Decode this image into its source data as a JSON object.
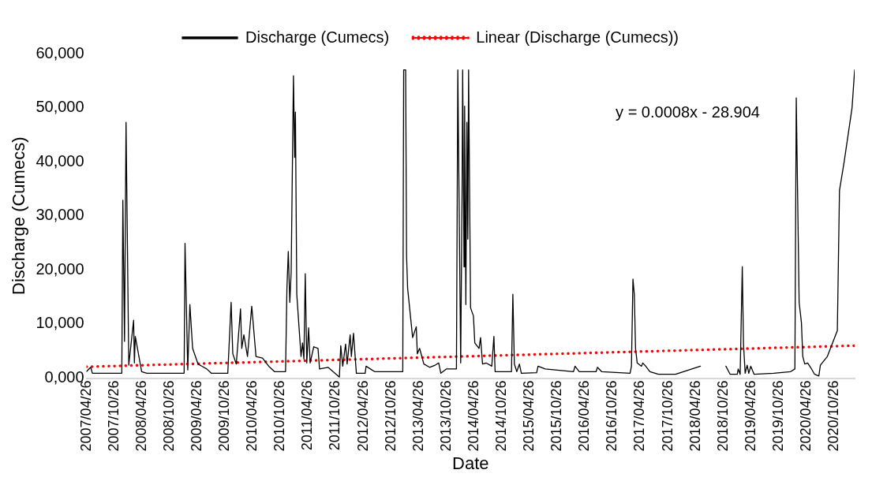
{
  "chart_data": {
    "type": "line",
    "xlabel": "Date",
    "ylabel": "Discharge (Cumecs)",
    "legend": "top",
    "grid": false,
    "marker": "none",
    "xlim": [
      "2007-04-26",
      "2021-03-09"
    ],
    "xticks": [
      {
        "value": "2007-04-26",
        "label": "2007/04/26"
      },
      {
        "value": "2007-10-26",
        "label": "2007/10/26"
      },
      {
        "value": "2008-04-26",
        "label": "2008/04/26"
      },
      {
        "value": "2008-10-26",
        "label": "2008/10/26"
      },
      {
        "value": "2009-04-26",
        "label": "2009/04/26"
      },
      {
        "value": "2009-10-26",
        "label": "2009/10/26"
      },
      {
        "value": "2010-04-26",
        "label": "2010/04/26"
      },
      {
        "value": "2010-10-26",
        "label": "2010/10/26"
      },
      {
        "value": "2011-04-26",
        "label": "2011/04/26"
      },
      {
        "value": "2011-10-26",
        "label": "2011/10/26"
      },
      {
        "value": "2012-04-26",
        "label": "2012/04/26"
      },
      {
        "value": "2012-10-26",
        "label": "2012/10/26"
      },
      {
        "value": "2013-04-26",
        "label": "2013/04/26"
      },
      {
        "value": "2013-10-26",
        "label": "2013/10/26"
      },
      {
        "value": "2014-04-26",
        "label": "2014/04/26"
      },
      {
        "value": "2014-10-26",
        "label": "2014/10/26"
      },
      {
        "value": "2015-04-26",
        "label": "2015/04/26"
      },
      {
        "value": "2015-10-26",
        "label": "2015/10/26"
      },
      {
        "value": "2016-04-26",
        "label": "2016/04/26"
      },
      {
        "value": "2016-10-26",
        "label": "2016/10/26"
      },
      {
        "value": "2017-04-26",
        "label": "2017/04/26"
      },
      {
        "value": "2017-10-26",
        "label": "2017/10/26"
      },
      {
        "value": "2018-04-26",
        "label": "2018/04/26"
      },
      {
        "value": "2018-10-26",
        "label": "2018/10/26"
      },
      {
        "value": "2019-04-26",
        "label": "2019/04/26"
      },
      {
        "value": "2019-10-26",
        "label": "2019/10/26"
      },
      {
        "value": "2020-04-26",
        "label": "2020/04/26"
      },
      {
        "value": "2020-10-26",
        "label": "2020/10/26"
      }
    ],
    "ylim": [
      0,
      60000
    ],
    "yticks": [
      {
        "value": 0,
        "label": "0,000"
      },
      {
        "value": 10000,
        "label": "10,000"
      },
      {
        "value": 20000,
        "label": "20,000"
      },
      {
        "value": 30000,
        "label": "30,000"
      },
      {
        "value": 40000,
        "label": "40,000"
      },
      {
        "value": 50000,
        "label": "50,000"
      },
      {
        "value": 60000,
        "label": "60,000"
      }
    ],
    "annotations": [
      "y = 0.0008x - 28.904"
    ],
    "series": [
      {
        "name": "Discharge (Cumecs)",
        "color": "#000000",
        "line_style": "solid",
        "x": [
          "2007-04-26",
          "2007-05-24",
          "2007-06-04",
          "2007-12-15",
          "2007-12-22",
          "2008-01-02",
          "2008-01-12",
          "2008-01-30",
          "2008-03-02",
          "2008-03-07",
          "2008-03-13",
          "2008-04-24",
          "2008-05-28",
          "2009-01-29",
          "2009-02-04",
          "2009-02-22",
          "2009-03-08",
          "2009-03-26",
          "2009-05-01",
          "2009-06-27",
          "2009-07-27",
          "2009-11-13",
          "2009-12-05",
          "2009-12-16",
          "2010-01-08",
          "2010-02-05",
          "2010-02-13",
          "2010-02-27",
          "2010-03-23",
          "2010-04-20",
          "2010-05-18",
          "2010-06-30",
          "2010-08-10",
          "2010-09-17",
          "2010-11-29",
          "2010-12-08",
          "2010-12-17",
          "2010-12-27",
          "2011-01-05",
          "2011-01-20",
          "2011-01-28",
          "2011-02-02",
          "2011-02-11",
          "2011-03-11",
          "2011-03-21",
          "2011-03-30",
          "2011-04-08",
          "2011-04-18",
          "2011-04-30",
          "2011-05-10",
          "2011-06-03",
          "2011-07-01",
          "2011-07-11",
          "2011-09-05",
          "2011-11-19",
          "2011-11-28",
          "2011-12-11",
          "2011-12-30",
          "2012-01-09",
          "2012-01-29",
          "2012-02-06",
          "2012-02-20",
          "2012-03-10",
          "2012-05-07",
          "2012-05-13",
          "2012-06-10",
          "2012-07-08",
          "2013-01-10",
          "2013-01-16",
          "2013-01-29",
          "2013-02-04",
          "2013-02-11",
          "2013-03-16",
          "2013-04-09",
          "2013-04-16",
          "2013-05-01",
          "2013-05-29",
          "2013-07-06",
          "2013-08-12",
          "2013-09-04",
          "2013-09-18",
          "2013-10-26",
          "2013-12-30",
          "2014-01-08",
          "2014-01-27",
          "2014-02-05",
          "2014-02-09",
          "2014-02-18",
          "2014-02-22",
          "2014-03-02",
          "2014-03-09",
          "2014-03-15",
          "2014-03-20",
          "2014-04-02",
          "2014-04-21",
          "2014-04-30",
          "2014-05-28",
          "2014-06-07",
          "2014-06-20",
          "2014-07-14",
          "2014-08-20",
          "2014-09-03",
          "2014-09-11",
          "2014-12-28",
          "2015-01-06",
          "2015-01-16",
          "2015-02-01",
          "2015-02-18",
          "2015-03-03",
          "2015-06-12",
          "2015-06-21",
          "2015-08-07",
          "2016-02-10",
          "2016-02-20",
          "2016-03-19",
          "2016-07-08",
          "2016-07-17",
          "2016-08-13",
          "2017-02-17",
          "2017-02-26",
          "2017-03-08",
          "2017-03-17",
          "2017-03-25",
          "2017-04-05",
          "2017-05-03",
          "2017-05-12",
          "2017-05-31",
          "2017-06-28",
          "2017-08-23",
          "2017-12-14",
          "2018-05-27",
          "2018-07-15",
          "2018-11-11",
          "2018-12-09",
          "2019-01-25",
          "2019-01-31",
          "2019-02-13",
          "2019-02-27",
          "2019-03-07",
          "2019-03-18",
          "2019-03-31",
          "2019-04-11",
          "2019-04-24",
          "2019-05-16",
          "2019-09-22",
          "2020-01-12",
          "2020-02-09",
          "2020-02-18",
          "2020-03-08",
          "2020-03-23",
          "2020-04-01",
          "2020-04-14",
          "2020-05-03",
          "2020-05-22",
          "2020-06-18",
          "2020-07-16",
          "2020-07-26",
          "2020-09-10",
          "2020-11-15",
          "2020-11-29",
          "2020-12-31",
          "2021-02-20",
          "2021-03-09"
        ],
        "values": [
          1200,
          2000,
          900,
          900,
          32900,
          6800,
          47300,
          2400,
          10700,
          2800,
          7700,
          1200,
          900,
          900,
          24900,
          1500,
          13600,
          5500,
          2600,
          1700,
          900,
          900,
          14000,
          4500,
          2600,
          12800,
          5500,
          8000,
          4000,
          13300,
          4000,
          3700,
          2200,
          1200,
          1200,
          16600,
          23400,
          14000,
          19600,
          55900,
          40800,
          49200,
          15500,
          4000,
          6500,
          3500,
          19300,
          2800,
          9300,
          2800,
          5800,
          5500,
          1700,
          2000,
          200,
          6000,
          2200,
          6300,
          2600,
          8000,
          4000,
          8300,
          900,
          900,
          2200,
          1700,
          1200,
          1200,
          57000,
          57000,
          22600,
          16600,
          7500,
          9500,
          4500,
          5500,
          2600,
          2000,
          2400,
          2800,
          900,
          1700,
          1700,
          57000,
          2800,
          34200,
          57000,
          20600,
          50300,
          13600,
          47300,
          25700,
          57000,
          13000,
          11500,
          6500,
          5500,
          7500,
          2600,
          2800,
          2200,
          7700,
          1200,
          1200,
          15500,
          2600,
          1200,
          2600,
          900,
          1000,
          2200,
          1700,
          1200,
          2200,
          1200,
          1200,
          2000,
          1200,
          900,
          2200,
          18300,
          15500,
          5500,
          2800,
          2200,
          2800,
          2200,
          1200,
          700,
          700,
          2200,
          null,
          2200,
          700,
          700,
          1700,
          700,
          20600,
          6300,
          900,
          2400,
          900,
          2200,
          700,
          900,
          1200,
          1700,
          51800,
          14000,
          10300,
          4000,
          2600,
          2800,
          2000,
          700,
          400,
          2400,
          4000,
          8800,
          34700,
          40200,
          50000,
          57000
        ]
      },
      {
        "name": "Linear (Discharge (Cumecs))",
        "color": "#ff0000",
        "line_style": "dotted",
        "x": [
          "2007-04-26",
          "2021-03-09"
        ],
        "values": [
          2100,
          6000
        ]
      }
    ]
  }
}
